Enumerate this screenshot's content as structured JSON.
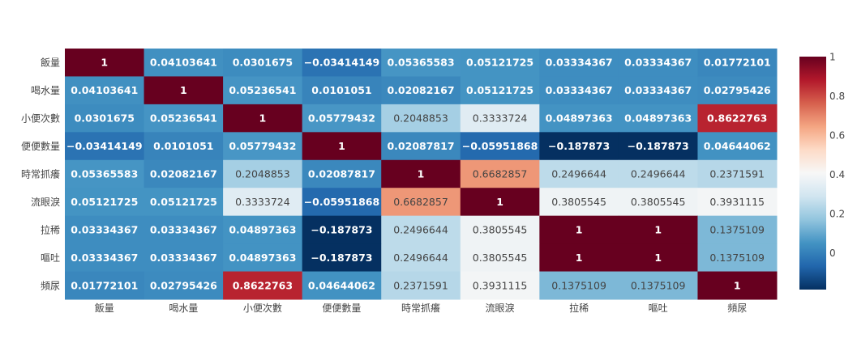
{
  "chart_data": {
    "type": "heatmap",
    "title": "",
    "x_categories": [
      "飯量",
      "喝水量",
      "小便次數",
      "便便數量",
      "時常抓癢",
      "流眼淚",
      "拉稀",
      "嘔吐",
      "頻尿"
    ],
    "y_categories": [
      "飯量",
      "喝水量",
      "小便次數",
      "便便數量",
      "時常抓癢",
      "流眼淚",
      "拉稀",
      "嘔吐",
      "頻尿"
    ],
    "cells": [
      [
        "1",
        "0.04103641",
        "0.0301675",
        "−0.03414149",
        "0.05365583",
        "0.05121725",
        "0.03334367",
        "0.03334367",
        "0.01772101"
      ],
      [
        "0.04103641",
        "1",
        "0.05236541",
        "0.0101051",
        "0.02082167",
        "0.05121725",
        "0.03334367",
        "0.03334367",
        "0.02795426"
      ],
      [
        "0.0301675",
        "0.05236541",
        "1",
        "0.05779432",
        "0.2048853",
        "0.3333724",
        "0.04897363",
        "0.04897363",
        "0.8622763"
      ],
      [
        "−0.03414149",
        "0.0101051",
        "0.05779432",
        "1",
        "0.02087817",
        "−0.05951868",
        "−0.187873",
        "−0.187873",
        "0.04644062"
      ],
      [
        "0.05365583",
        "0.02082167",
        "0.2048853",
        "0.02087817",
        "1",
        "0.6682857",
        "0.2496644",
        "0.2496644",
        "0.2371591"
      ],
      [
        "0.05121725",
        "0.05121725",
        "0.3333724",
        "−0.05951868",
        "0.6682857",
        "1",
        "0.3805545",
        "0.3805545",
        "0.3931115"
      ],
      [
        "0.03334367",
        "0.03334367",
        "0.04897363",
        "−0.187873",
        "0.2496644",
        "0.3805545",
        "1",
        "1",
        "0.1375109"
      ],
      [
        "0.03334367",
        "0.03334367",
        "0.04897363",
        "−0.187873",
        "0.2496644",
        "0.3805545",
        "1",
        "1",
        "0.1375109"
      ],
      [
        "0.01772101",
        "0.02795426",
        "0.8622763",
        "0.04644062",
        "0.2371591",
        "0.3931115",
        "0.1375109",
        "0.1375109",
        "1"
      ]
    ],
    "zmin": -0.187873,
    "zmax": 1,
    "colorscale": "RdBu",
    "colorbar": {
      "ticks": [
        0,
        0.2,
        0.4,
        0.6,
        0.8,
        1
      ],
      "tick_labels": [
        "0",
        "0.2",
        "0.4",
        "0.6",
        "0.8",
        "1"
      ]
    },
    "legend": "colorbar-right",
    "grid": false
  }
}
